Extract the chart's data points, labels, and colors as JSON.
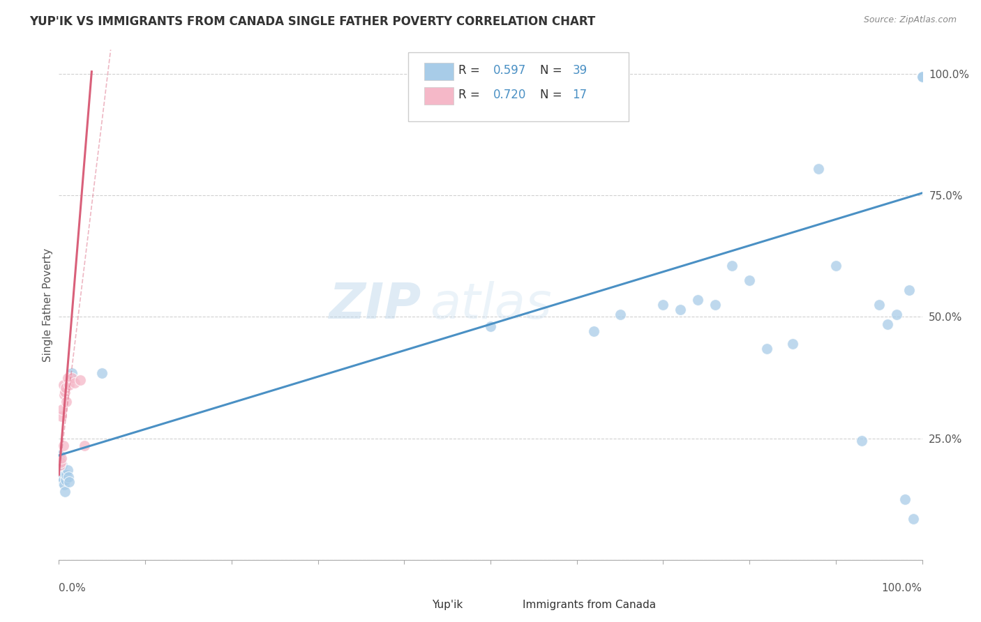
{
  "title": "YUP'IK VS IMMIGRANTS FROM CANADA SINGLE FATHER POVERTY CORRELATION CHART",
  "source": "Source: ZipAtlas.com",
  "ylabel": "Single Father Poverty",
  "ytick_labels": [
    "",
    "25.0%",
    "50.0%",
    "75.0%",
    "100.0%"
  ],
  "ytick_positions": [
    0.0,
    0.25,
    0.5,
    0.75,
    1.0
  ],
  "blue_color": "#a8cce8",
  "pink_color": "#f5b8c8",
  "blue_line_color": "#4a90c4",
  "pink_line_color": "#d9607a",
  "watermark_zip": "ZIP",
  "watermark_atlas": "atlas",
  "legend_blue_r": "R = 0.597",
  "legend_blue_n": "N = 39",
  "legend_pink_r": "R = 0.720",
  "legend_pink_n": "N = 17",
  "yupik_x": [
    0.001,
    0.002,
    0.002,
    0.003,
    0.004,
    0.004,
    0.005,
    0.006,
    0.007,
    0.007,
    0.008,
    0.009,
    0.01,
    0.011,
    0.012,
    0.015,
    0.05,
    0.5,
    0.62,
    0.65,
    0.7,
    0.72,
    0.74,
    0.76,
    0.78,
    0.8,
    0.82,
    0.85,
    0.88,
    0.9,
    0.93,
    0.95,
    0.96,
    0.97,
    0.98,
    0.985,
    0.99,
    1.0,
    1.0
  ],
  "yupik_y": [
    0.215,
    0.205,
    0.18,
    0.17,
    0.16,
    0.195,
    0.165,
    0.155,
    0.14,
    0.175,
    0.165,
    0.175,
    0.185,
    0.17,
    0.16,
    0.385,
    0.385,
    0.48,
    0.47,
    0.505,
    0.525,
    0.515,
    0.535,
    0.525,
    0.605,
    0.575,
    0.435,
    0.445,
    0.805,
    0.605,
    0.245,
    0.525,
    0.485,
    0.505,
    0.125,
    0.555,
    0.085,
    0.995,
    0.995
  ],
  "canada_x": [
    0.001,
    0.002,
    0.003,
    0.003,
    0.004,
    0.005,
    0.005,
    0.006,
    0.007,
    0.008,
    0.009,
    0.01,
    0.012,
    0.015,
    0.018,
    0.025,
    0.03
  ],
  "canada_y": [
    0.195,
    0.2,
    0.295,
    0.21,
    0.31,
    0.36,
    0.235,
    0.34,
    0.345,
    0.355,
    0.325,
    0.375,
    0.36,
    0.375,
    0.365,
    0.37,
    0.235
  ],
  "blue_line": [
    0.0,
    1.0,
    0.215,
    0.755
  ],
  "pink_line_solid": [
    0.0,
    0.038,
    0.175,
    1.005
  ],
  "pink_line_dash": [
    0.0,
    0.06,
    0.175,
    1.05
  ]
}
